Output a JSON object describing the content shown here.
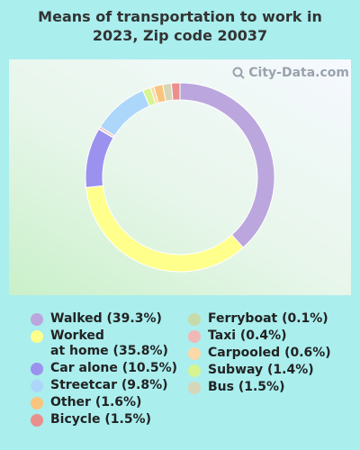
{
  "title_line1": "Means of transportation to work in",
  "title_line2": "2023, Zip code 20037",
  "watermark": "City-Data.com",
  "chart_data": {
    "type": "pie",
    "title": "Means of transportation to work in 2023, Zip code 20037",
    "slices": [
      {
        "name": "Walked",
        "value": 39.3,
        "label": "Walked (39.3%)",
        "color": "#bba6dd"
      },
      {
        "name": "Worked at home",
        "value": 35.8,
        "label": "Worked\nat home (35.8%)",
        "color": "#ffff8c"
      },
      {
        "name": "Car alone",
        "value": 10.5,
        "label": "Car alone (10.5%)",
        "color": "#9a92ee"
      },
      {
        "name": "Ferryboat",
        "value": 0.1,
        "label": "Ferryboat (0.1%)",
        "color": "#c6dba8"
      },
      {
        "name": "Taxi",
        "value": 0.4,
        "label": "Taxi (0.4%)",
        "color": "#f0b9b8"
      },
      {
        "name": "Streetcar",
        "value": 9.8,
        "label": "Streetcar (9.8%)",
        "color": "#add6fb"
      },
      {
        "name": "Subway",
        "value": 1.4,
        "label": "Subway (1.4%)",
        "color": "#d6f591"
      },
      {
        "name": "Carpooled",
        "value": 0.6,
        "label": "Carpooled (0.6%)",
        "color": "#fdd8a8"
      },
      {
        "name": "Other",
        "value": 1.6,
        "label": "Other (1.6%)",
        "color": "#f9c57e"
      },
      {
        "name": "Bus",
        "value": 1.5,
        "label": "Bus (1.5%)",
        "color": "#d8d6b8"
      },
      {
        "name": "Bicycle",
        "value": 1.5,
        "label": "Bicycle (1.5%)",
        "color": "#e98f8c"
      }
    ]
  },
  "legend": {
    "left": [
      {
        "label": "Walked (39.3%)",
        "color": "#bba6dd"
      },
      {
        "label": "Worked\nat home (35.8%)",
        "color": "#ffff8c"
      },
      {
        "label": "Car alone (10.5%)",
        "color": "#9a92ee"
      },
      {
        "label": "Streetcar (9.8%)",
        "color": "#add6fb"
      },
      {
        "label": "Other (1.6%)",
        "color": "#f9c57e"
      },
      {
        "label": "Bicycle (1.5%)",
        "color": "#e98f8c"
      }
    ],
    "right": [
      {
        "label": "Ferryboat (0.1%)",
        "color": "#c6dba8"
      },
      {
        "label": "Taxi (0.4%)",
        "color": "#f0b9b8"
      },
      {
        "label": "Carpooled (0.6%)",
        "color": "#fdd8a8"
      },
      {
        "label": "Subway (1.4%)",
        "color": "#d6f591"
      },
      {
        "label": "Bus (1.5%)",
        "color": "#d8d6b8"
      }
    ]
  }
}
